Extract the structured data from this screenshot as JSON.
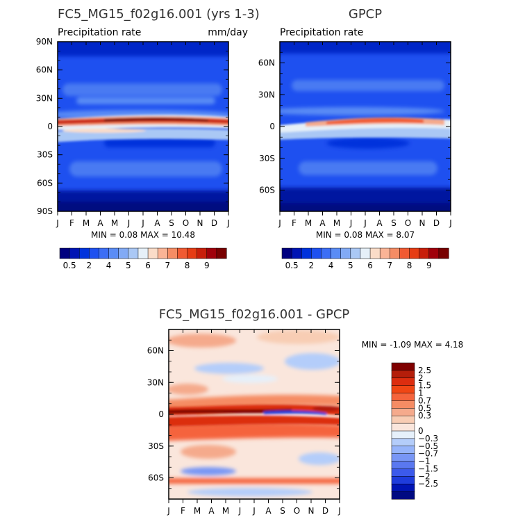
{
  "chart_data": [
    {
      "type": "heatmap",
      "title": "FC5_MG15_f02g16.001 (yrs 1-3)",
      "subtitle_left": "Precipitation rate",
      "subtitle_right": "mm/day",
      "stats": "MIN =    0.08  MAX =   10.48",
      "x_ticks": [
        "J",
        "F",
        "M",
        "A",
        "M",
        "J",
        "J",
        "A",
        "S",
        "O",
        "N",
        "D",
        "J"
      ],
      "y_ticks": [
        "90N",
        "60N",
        "30N",
        "0",
        "30S",
        "60S",
        "90S"
      ],
      "colorbar_labels": [
        "0.5",
        "2",
        "4",
        "5",
        "6",
        "7",
        "8",
        "9"
      ],
      "colorbar_colors": [
        "#00007f",
        "#0014b4",
        "#0032dc",
        "#1e50f0",
        "#3c6ef5",
        "#5a8cf5",
        "#82aaf5",
        "#aac8f5",
        "#e6f0f8",
        "#fadcc8",
        "#fab496",
        "#f58c64",
        "#f05a32",
        "#e63c14",
        "#c81e0a",
        "#a0000a",
        "#780000"
      ],
      "ylim": [
        -90,
        90
      ],
      "max_band_strength": 1.0
    },
    {
      "type": "heatmap",
      "title": "GPCP",
      "subtitle_left": "Precipitation rate",
      "stats": "MIN =    0.08  MAX =    8.07",
      "x_ticks": [
        "J",
        "F",
        "M",
        "A",
        "M",
        "J",
        "J",
        "A",
        "S",
        "O",
        "N",
        "D",
        "J"
      ],
      "y_ticks": [
        "60N",
        "30N",
        "0",
        "30S",
        "60S"
      ],
      "colorbar_labels": [
        "0.5",
        "2",
        "4",
        "5",
        "6",
        "7",
        "8",
        "9"
      ],
      "colorbar_colors": [
        "#00007f",
        "#0014b4",
        "#0032dc",
        "#1e50f0",
        "#3c6ef5",
        "#5a8cf5",
        "#82aaf5",
        "#aac8f5",
        "#e6f0f8",
        "#fadcc8",
        "#fab496",
        "#f58c64",
        "#f05a32",
        "#e63c14",
        "#c81e0a",
        "#a0000a",
        "#780000"
      ],
      "ylim": [
        -80,
        80
      ],
      "max_band_strength": 0.72
    },
    {
      "type": "heatmap",
      "title": "FC5_MG15_f02g16.001 - GPCP",
      "stats": "MIN =   -1.09  MAX =    4.18",
      "x_ticks": [
        "J",
        "F",
        "M",
        "A",
        "M",
        "J",
        "J",
        "A",
        "S",
        "O",
        "N",
        "D",
        "J"
      ],
      "y_ticks": [
        "60N",
        "30N",
        "0",
        "30S",
        "60S"
      ],
      "colorbar_labels": [
        "2.5",
        "2",
        "1.5",
        "1",
        "0.7",
        "0.5",
        "0.3",
        "0",
        "-0.3",
        "-0.5",
        "-0.7",
        "-1",
        "-1.5",
        "-2",
        "-2.5"
      ],
      "colorbar_colors": [
        "#7f0000",
        "#b41e0a",
        "#dc2d0f",
        "#f04614",
        "#f5643c",
        "#f58c64",
        "#f5aa8c",
        "#f8cdb4",
        "#fae6dc",
        "#e6f0fa",
        "#b4cdfa",
        "#96b4fa",
        "#7896f5",
        "#5a78f0",
        "#3c5aeb",
        "#1e3cdc",
        "#0014b4",
        "#000a82"
      ],
      "ylim": [
        -80,
        80
      ]
    }
  ]
}
